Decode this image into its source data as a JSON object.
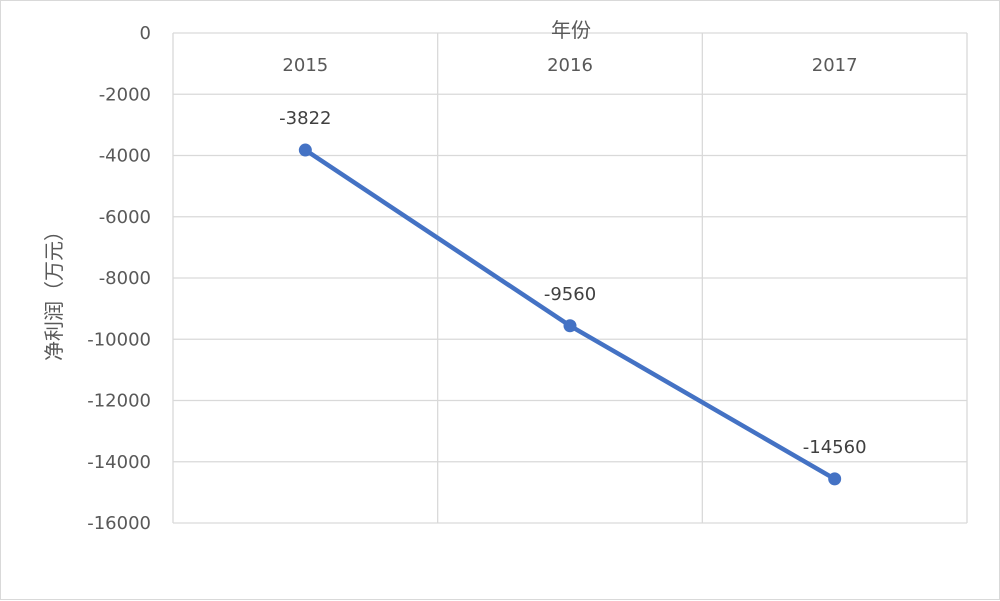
{
  "chart_data": {
    "type": "line",
    "xlabel": "年份",
    "ylabel": "净利润（万元）",
    "categories": [
      "2015",
      "2016",
      "2017"
    ],
    "series": [
      {
        "values": [
          -3822,
          -9560,
          -14560
        ],
        "data_labels": [
          "-3822",
          "-9560",
          "-14560"
        ],
        "color": "#4472c4"
      }
    ],
    "ylim": [
      -16000,
      0
    ],
    "y_ticks": [
      0,
      -2000,
      -4000,
      -6000,
      -8000,
      -10000,
      -12000,
      -14000,
      -16000
    ],
    "y_tick_labels": [
      "0",
      "-2000",
      "-4000",
      "-6000",
      "-8000",
      "-10000",
      "-12000",
      "-14000",
      "-16000"
    ],
    "x_axis_position": "top",
    "grid": true,
    "gridline_color": "#d9d9d9",
    "legend": "none"
  }
}
